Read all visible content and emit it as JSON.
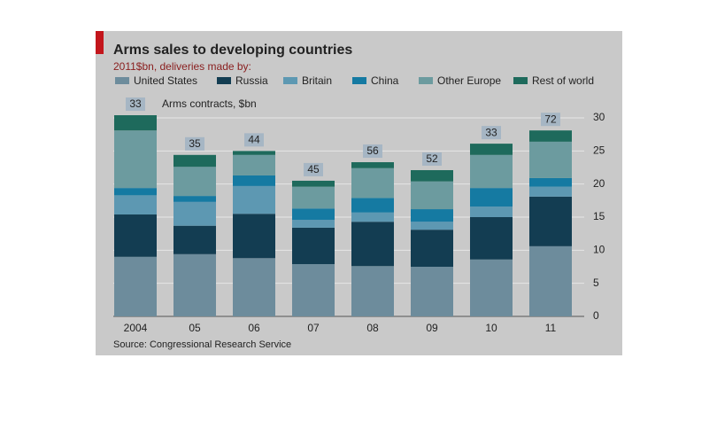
{
  "chart_data": {
    "type": "stacked_bar",
    "title": "Arms sales to developing countries",
    "subtitle": "2011$bn, deliveries made by:",
    "annotation": "Arms contracts, $bn",
    "source": "Source: Congressional Research Service",
    "categories": [
      "2004",
      "05",
      "06",
      "07",
      "08",
      "09",
      "10",
      "11"
    ],
    "series": [
      {
        "name": "United States",
        "color": "#6d8c9c",
        "values": [
          9.0,
          9.4,
          8.8,
          7.9,
          7.6,
          7.5,
          8.6,
          10.6
        ]
      },
      {
        "name": "Russia",
        "color": "#133d52",
        "values": [
          6.4,
          4.3,
          6.7,
          5.5,
          6.7,
          5.6,
          6.4,
          7.5
        ]
      },
      {
        "name": "Britain",
        "color": "#5d98b2",
        "values": [
          2.9,
          3.6,
          4.2,
          1.2,
          1.4,
          1.2,
          1.6,
          1.5
        ]
      },
      {
        "name": "China",
        "color": "#157aa2",
        "values": [
          1.1,
          0.9,
          1.6,
          1.7,
          2.2,
          1.9,
          2.8,
          1.3
        ]
      },
      {
        "name": "Other Europe",
        "color": "#6c9b9f",
        "values": [
          8.7,
          4.4,
          3.1,
          3.3,
          4.5,
          4.2,
          5.0,
          5.5
        ]
      },
      {
        "name": "Rest of world",
        "color": "#1e6a5c",
        "values": [
          2.3,
          1.8,
          0.6,
          0.9,
          0.9,
          1.7,
          1.7,
          1.7
        ]
      }
    ],
    "contracts": [
      33,
      35,
      44,
      45,
      56,
      52,
      33,
      72
    ],
    "ylim": [
      0,
      30
    ],
    "yticks": [
      0,
      5,
      10,
      15,
      20,
      25,
      30
    ],
    "grid": true,
    "axis_side": "right"
  }
}
